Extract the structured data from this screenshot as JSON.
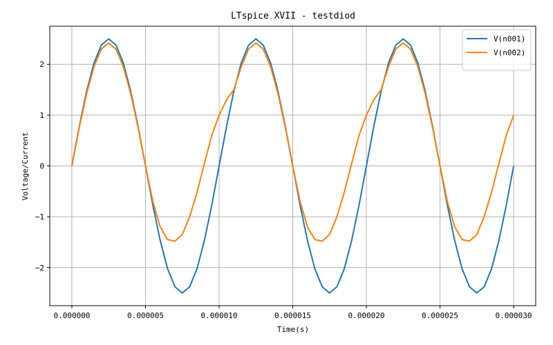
{
  "chart_data": {
    "type": "line",
    "title": "LTspice XVII - testdiod",
    "xlabel": "Time(s)",
    "ylabel": "Voltage/Current",
    "xlim": [
      -1.5e-06,
      3.15e-05
    ],
    "ylim": [
      -2.75,
      2.75
    ],
    "xticks": [
      0.0,
      5e-06,
      1e-05,
      1.5e-05,
      2e-05,
      2.5e-05,
      3e-05
    ],
    "xtick_labels": [
      "0.000000",
      "0.000005",
      "0.000010",
      "0.000015",
      "0.000020",
      "0.000025",
      "0.000030"
    ],
    "yticks": [
      -2,
      -1,
      0,
      1,
      2
    ],
    "ytick_labels": [
      "−2",
      "−1",
      "0",
      "1",
      "2"
    ],
    "grid": true,
    "legend_position": "top-right",
    "series": [
      {
        "name": "V(n001)",
        "color": "#1f77b4",
        "x": [
          0.0,
          5e-07,
          1e-06,
          1.5e-06,
          2e-06,
          2.5e-06,
          3e-06,
          3.5e-06,
          4e-06,
          4.5e-06,
          5e-06,
          5.5e-06,
          6e-06,
          6.5e-06,
          7e-06,
          7.5e-06,
          8e-06,
          8.5e-06,
          9e-06,
          9.5e-06,
          1e-05,
          1.05e-05,
          1.1e-05,
          1.15e-05,
          1.2e-05,
          1.25e-05,
          1.3e-05,
          1.35e-05,
          1.4e-05,
          1.45e-05,
          1.5e-05,
          1.55e-05,
          1.6e-05,
          1.65e-05,
          1.7e-05,
          1.75e-05,
          1.8e-05,
          1.85e-05,
          1.9e-05,
          1.95e-05,
          2e-05,
          2.05e-05,
          2.1e-05,
          2.15e-05,
          2.2e-05,
          2.25e-05,
          2.3e-05,
          2.35e-05,
          2.4e-05,
          2.45e-05,
          2.5e-05,
          2.55e-05,
          2.6e-05,
          2.65e-05,
          2.7e-05,
          2.75e-05,
          2.8e-05,
          2.85e-05,
          2.9e-05,
          2.95e-05,
          3e-05
        ],
        "y": [
          0.0,
          0.773,
          1.469,
          2.023,
          2.378,
          2.5,
          2.378,
          2.023,
          1.469,
          0.773,
          0.0,
          -0.773,
          -1.469,
          -2.023,
          -2.378,
          -2.5,
          -2.378,
          -2.023,
          -1.469,
          -0.773,
          0.0,
          0.773,
          1.469,
          2.023,
          2.378,
          2.5,
          2.378,
          2.023,
          1.469,
          0.773,
          0.0,
          -0.773,
          -1.469,
          -2.023,
          -2.378,
          -2.5,
          -2.378,
          -2.023,
          -1.469,
          -0.773,
          0.0,
          0.773,
          1.469,
          2.023,
          2.378,
          2.5,
          2.378,
          2.023,
          1.469,
          0.773,
          0.0,
          -0.773,
          -1.469,
          -2.023,
          -2.378,
          -2.5,
          -2.378,
          -2.023,
          -1.469,
          -0.773,
          0.0
        ]
      },
      {
        "name": "V(n002)",
        "color": "#ff7f0e",
        "x": [
          0.0,
          5e-07,
          1e-06,
          1.5e-06,
          2e-06,
          2.5e-06,
          3e-06,
          3.5e-06,
          4e-06,
          4.5e-06,
          5e-06,
          5.5e-06,
          6e-06,
          6.5e-06,
          7e-06,
          7.5e-06,
          8e-06,
          8.5e-06,
          9e-06,
          9.5e-06,
          1e-05,
          1.05e-05,
          1.1e-05,
          1.15e-05,
          1.2e-05,
          1.25e-05,
          1.3e-05,
          1.35e-05,
          1.4e-05,
          1.45e-05,
          1.5e-05,
          1.55e-05,
          1.6e-05,
          1.65e-05,
          1.7e-05,
          1.75e-05,
          1.8e-05,
          1.85e-05,
          1.9e-05,
          1.95e-05,
          2e-05,
          2.05e-05,
          2.1e-05,
          2.15e-05,
          2.2e-05,
          2.25e-05,
          2.3e-05,
          2.35e-05,
          2.4e-05,
          2.45e-05,
          2.5e-05,
          2.55e-05,
          2.6e-05,
          2.65e-05,
          2.7e-05,
          2.75e-05,
          2.8e-05,
          2.85e-05,
          2.9e-05,
          2.95e-05,
          3e-05
        ],
        "y": [
          0.0,
          0.75,
          1.42,
          1.95,
          2.3,
          2.42,
          2.3,
          1.95,
          1.42,
          0.75,
          0.0,
          -0.7,
          -1.2,
          -1.45,
          -1.48,
          -1.35,
          -1.0,
          -0.52,
          0.05,
          0.6,
          1.0,
          1.3,
          1.5,
          1.95,
          2.3,
          2.42,
          2.3,
          1.95,
          1.42,
          0.75,
          0.0,
          -0.7,
          -1.2,
          -1.45,
          -1.48,
          -1.35,
          -1.0,
          -0.52,
          0.05,
          0.6,
          1.0,
          1.3,
          1.5,
          1.95,
          2.3,
          2.42,
          2.3,
          1.95,
          1.42,
          0.75,
          0.0,
          -0.7,
          -1.2,
          -1.45,
          -1.48,
          -1.35,
          -1.0,
          -0.52,
          0.05,
          0.6,
          1.0
        ]
      }
    ]
  }
}
